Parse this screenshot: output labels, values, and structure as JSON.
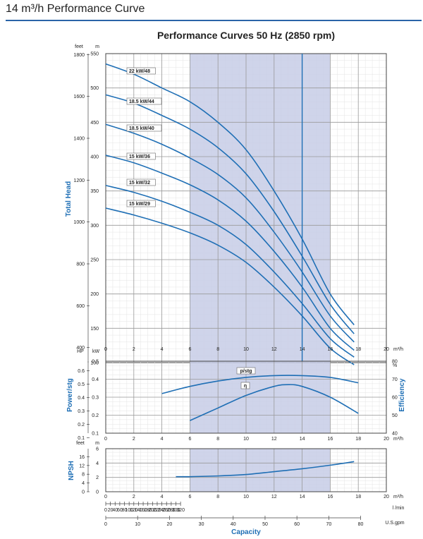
{
  "page_title": "14 m³/h Performance Curve",
  "colors": {
    "accent": "#2a64a8",
    "curve": "#1f6fb5",
    "band": "#c7cce6",
    "grid": "#cfcfcf",
    "axis_label": "#1f6fb5"
  },
  "chart_data": [
    {
      "type": "line",
      "title": "Performance Curves 50 Hz (2850 rpm)",
      "xlabel": "m³/h",
      "ylabel": "Total Head",
      "y_unit_primary": "m",
      "y_unit_secondary": "feet",
      "xlim": [
        0,
        20
      ],
      "ylim": [
        100,
        550
      ],
      "x_ticks": [
        0,
        2,
        4,
        6,
        8,
        10,
        12,
        14,
        16,
        18,
        20
      ],
      "y_ticks": [
        100,
        150,
        200,
        250,
        300,
        350,
        400,
        450,
        500,
        550
      ],
      "y_ticks_feet": [
        400,
        600,
        800,
        1000,
        1200,
        1400,
        1600,
        1800
      ],
      "highlight_band_x": [
        6,
        16
      ],
      "reference_line_x": 14,
      "grid": true,
      "series": [
        {
          "name": "22 kW/48",
          "x": [
            0,
            2,
            4,
            6,
            8,
            10,
            12,
            14,
            16,
            17.7
          ],
          "y": [
            535,
            520,
            500,
            480,
            450,
            410,
            350,
            280,
            200,
            155
          ]
        },
        {
          "name": "18.5 kW/44",
          "x": [
            0,
            2,
            4,
            6,
            8,
            10,
            12,
            14,
            16,
            17.7
          ],
          "y": [
            490,
            478,
            460,
            440,
            413,
            375,
            320,
            255,
            185,
            142
          ]
        },
        {
          "name": "18.5 kW/40",
          "x": [
            0,
            2,
            4,
            6,
            8,
            10,
            12,
            14,
            16,
            17.7
          ],
          "y": [
            447,
            434,
            418,
            398,
            374,
            340,
            290,
            232,
            168,
            130
          ]
        },
        {
          "name": "15 kW/36",
          "x": [
            0,
            2,
            4,
            6,
            8,
            10,
            12,
            14,
            16,
            17.7
          ],
          "y": [
            402,
            391,
            376,
            359,
            337,
            306,
            262,
            210,
            150,
            118
          ]
        },
        {
          "name": "15 kW/32",
          "x": [
            0,
            2,
            4,
            6,
            8,
            10,
            12,
            14,
            16,
            17.7
          ],
          "y": [
            358,
            348,
            335,
            319,
            300,
            272,
            232,
            186,
            135,
            108
          ]
        },
        {
          "name": "15 kW/29",
          "x": [
            0,
            2,
            4,
            6,
            8,
            10,
            12,
            14,
            16,
            17.7
          ],
          "y": [
            325,
            315,
            303,
            289,
            271,
            246,
            210,
            168,
            121,
            97
          ]
        }
      ]
    },
    {
      "type": "line",
      "ylabel_left": "Power/stg",
      "y_unit_left": "kW",
      "y_unit_left_secondary": "HP",
      "ylabel_right": "Efficiency",
      "y_unit_right": "%",
      "xlabel": "m³/h",
      "xlim": [
        0,
        20
      ],
      "ylim_left": [
        0.1,
        0.5
      ],
      "y_ticks_left": [
        0.1,
        0.2,
        0.3,
        0.4,
        0.5
      ],
      "y_ticks_left_hp": [
        0.1,
        0.2,
        0.3,
        0.4,
        0.5,
        0.6
      ],
      "ylim_right": [
        40,
        80
      ],
      "y_ticks_right": [
        40,
        50,
        60,
        70,
        80
      ],
      "x_ticks": [
        0,
        2,
        4,
        6,
        8,
        10,
        12,
        14,
        16,
        18,
        20
      ],
      "series": [
        {
          "name": "p/stg",
          "axis": "left",
          "x": [
            4,
            6,
            8,
            10,
            12,
            14,
            16,
            18
          ],
          "y": [
            0.32,
            0.36,
            0.39,
            0.41,
            0.42,
            0.42,
            0.41,
            0.38
          ]
        },
        {
          "name": "η",
          "axis": "right",
          "x": [
            6,
            8,
            10,
            12,
            13,
            14,
            16,
            18
          ],
          "y": [
            47,
            54,
            61,
            66,
            67,
            66,
            60,
            51
          ]
        }
      ]
    },
    {
      "type": "line",
      "ylabel": "NPSH",
      "y_unit_primary": "m",
      "y_unit_secondary": "feet",
      "xlabel": "m³/h",
      "xlim": [
        0,
        20
      ],
      "ylim": [
        0,
        6
      ],
      "y_ticks": [
        0,
        2,
        4,
        6
      ],
      "y_ticks_feet": [
        0,
        4,
        8,
        12,
        16
      ],
      "x_ticks": [
        0,
        2,
        4,
        6,
        8,
        10,
        12,
        14,
        16,
        18,
        20
      ],
      "series": [
        {
          "name": "NPSH",
          "x": [
            5,
            6,
            8,
            10,
            12,
            14,
            16,
            17.7
          ],
          "y": [
            2.1,
            2.1,
            2.2,
            2.4,
            2.8,
            3.2,
            3.7,
            4.2
          ]
        }
      ]
    }
  ],
  "capacity_scales": {
    "label": "Capacity",
    "lpm_unit": "l /min",
    "lpm_ticks": [
      0,
      20,
      40,
      60,
      80,
      100,
      120,
      140,
      160,
      180,
      200,
      220,
      240,
      260,
      280,
      300,
      320
    ],
    "gpm_unit": "U.S.gpm",
    "gpm_ticks": [
      0,
      10,
      20,
      30,
      40,
      50,
      60,
      70,
      80
    ]
  }
}
